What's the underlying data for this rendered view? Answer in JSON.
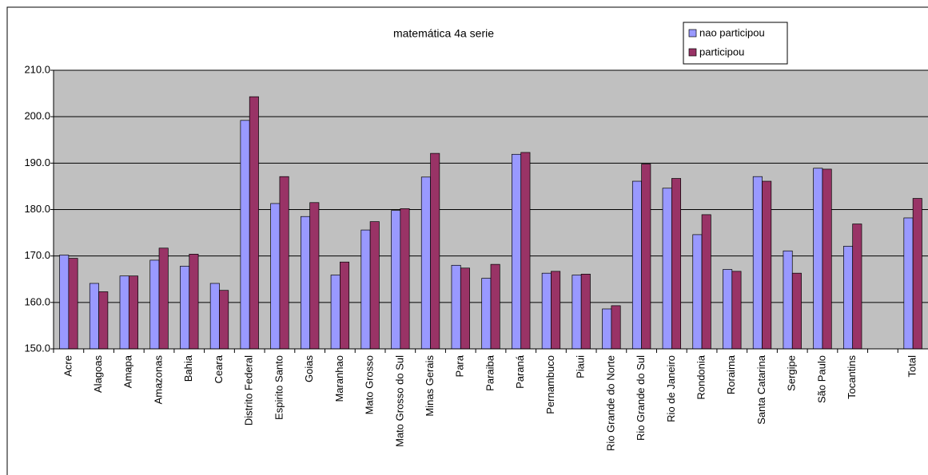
{
  "chart_data": {
    "type": "bar",
    "title": "matemática 4a serie",
    "categories": [
      "Acre",
      "Alagoas",
      "Amapa",
      "Amazonas",
      "Bahia",
      "Ceara",
      "Distrito Federal",
      "Espirito Santo",
      "Goias",
      "Maranhao",
      "Mato Grosso",
      "Mato Grosso do Sul",
      "Minas Gerais",
      "Para",
      "Paraiba",
      "Paraná",
      "Pernambuco",
      "Piaui",
      "Rio Grande do Norte",
      "Rio Grande do Sul",
      "Rio de Janeiro",
      "Rondonia",
      "Roraima",
      "Santa Catarina",
      "Sergipe",
      "São Paulo",
      "Tocantins",
      null,
      "Total"
    ],
    "series": [
      {
        "name": "nao participou",
        "color": "#9999ff",
        "values": [
          170.2,
          164.1,
          165.7,
          169.1,
          167.8,
          164.1,
          199.2,
          181.3,
          178.5,
          165.9,
          175.6,
          179.8,
          187.0,
          168.0,
          165.2,
          191.9,
          166.3,
          165.9,
          158.6,
          186.1,
          184.6,
          174.6,
          167.1,
          187.1,
          171.1,
          188.9,
          172.1,
          null,
          178.2
        ]
      },
      {
        "name": "participou",
        "color": "#993366",
        "values": [
          169.5,
          162.3,
          165.7,
          171.7,
          170.4,
          162.6,
          204.3,
          187.1,
          181.5,
          168.7,
          177.4,
          180.2,
          192.1,
          167.4,
          168.2,
          192.3,
          166.7,
          166.1,
          159.3,
          189.8,
          186.7,
          178.9,
          166.7,
          186.1,
          166.3,
          188.7,
          176.9,
          null,
          182.4
        ]
      }
    ],
    "ylim": [
      150,
      210
    ],
    "yticks": [
      {
        "value": 150,
        "label": "150.0"
      },
      {
        "value": 160,
        "label": "160.0"
      },
      {
        "value": 170,
        "label": "170.0"
      },
      {
        "value": 180,
        "label": "180.0"
      },
      {
        "value": 190,
        "label": "190.0"
      },
      {
        "value": 200,
        "label": "200.0"
      },
      {
        "value": 210,
        "label": "210.0"
      }
    ],
    "grid": true,
    "legend": "top-right"
  }
}
